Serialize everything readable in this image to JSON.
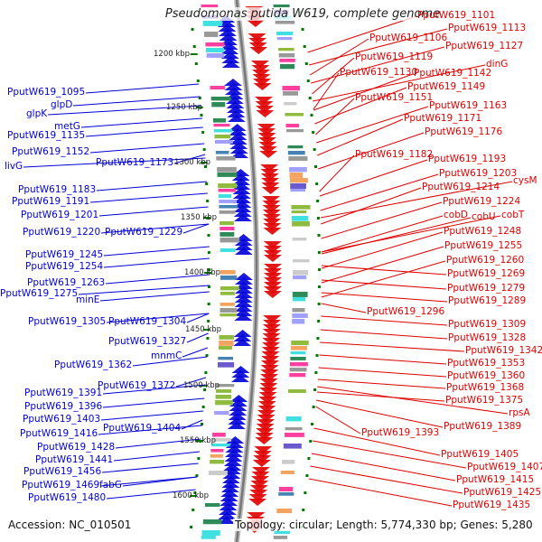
{
  "title": "Pseudomonas putida W619, complete genome",
  "footer": {
    "accession": "Accession: NC_010501",
    "summary": "Topology: circular; Length: 5,774,330 bp; Genes: 5,280"
  },
  "colors": {
    "forward_strand": "#e00000",
    "reverse_strand": "#0000d8",
    "backbone": "#888888",
    "tick": "#007a00"
  },
  "scale_ticks": [
    "1200 kbp",
    "1250 kbp",
    "1300 kbp",
    "1350 kbp",
    "1400 kbp",
    "1450 kbp",
    "1500 kbp",
    "1550 kbp",
    "1600 kbp"
  ],
  "right_labels": [
    "PputW619_1101",
    "PputW619_1113",
    "PputW619_1106",
    "PputW619_1127",
    "PputW619_1119",
    "dinG",
    "PputW619_1130",
    "PputW619_1142",
    "PputW619_1149",
    "PputW619_1151",
    "PputW619_1163",
    "PputW619_1171",
    "PputW619_1176",
    "PputW619_1182",
    "PputW619_1193",
    "PputW619_1203",
    "cysM",
    "PputW619_1214",
    "PputW619_1224",
    "cobD",
    "cobU",
    "cobT",
    "PputW619_1248",
    "PputW619_1255",
    "PputW619_1260",
    "PputW619_1269",
    "PputW619_1279",
    "PputW619_1289",
    "PputW619_1296",
    "PputW619_1309",
    "PputW619_1328",
    "PputW619_1342",
    "PputW619_1353",
    "PputW619_1360",
    "PputW619_1368",
    "PputW619_1375",
    "rpsA",
    "PputW619_1389",
    "PputW619_1393",
    "PputW619_1405",
    "PputW619_1407",
    "PputW619_1415",
    "PputW619_1425",
    "PputW619_1435"
  ],
  "left_labels": [
    "PputW619_1095",
    "glpD",
    "glpK",
    "metG",
    "PputW619_1135",
    "PputW619_1152",
    "livG",
    "PputW619_1173",
    "PputW619_1183",
    "PputW619_1191",
    "PputW619_1201",
    "PputW619_1220",
    "PputW619_1229",
    "PputW619_1245",
    "PputW619_1254",
    "PputW619_1263",
    "PputW619_1275",
    "minE",
    "PputW619_1305",
    "PputW619_1304",
    "PputW619_1327",
    "mnmC",
    "PputW619_1362",
    "PputW619_1372",
    "PputW619_1391",
    "PputW619_1396",
    "PputW619_1403",
    "PputW619_1404",
    "PputW619_1416",
    "PputW619_1428",
    "PputW619_1441",
    "PputW619_1456",
    "PputW619_1469",
    "fabG",
    "PputW619_1480"
  ]
}
